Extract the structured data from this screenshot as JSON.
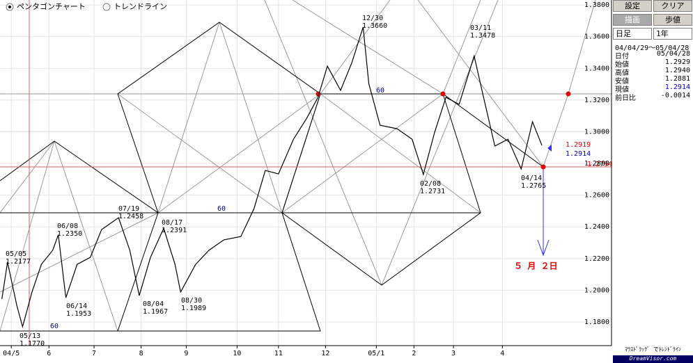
{
  "chart_data": {
    "type": "line",
    "x": [
      1,
      4,
      9,
      12,
      17,
      22,
      28,
      31,
      35,
      41,
      48,
      54,
      63,
      69,
      74,
      80,
      87,
      93,
      96,
      104,
      111,
      119,
      128,
      135,
      141,
      148,
      156,
      163,
      169,
      174,
      181,
      187,
      193,
      196,
      202,
      211,
      219,
      225,
      231,
      237,
      244,
      252,
      257,
      263,
      270,
      277,
      283,
      288
    ],
    "series": [
      {
        "color": "#000000",
        "values": [
          1.1945,
          1.2177,
          1.1901,
          1.177,
          1.1989,
          1.2164,
          1.2252,
          1.235,
          1.1953,
          1.2164,
          1.2208,
          1.2383,
          1.2458,
          1.2252,
          1.1967,
          1.2208,
          1.2391,
          1.2164,
          1.1989,
          1.2164,
          1.2252,
          1.2318,
          1.2339,
          1.2515,
          1.2756,
          1.2734,
          1.2953,
          1.3085,
          1.3217,
          1.3414,
          1.3261,
          1.3436,
          1.366,
          1.3304,
          1.3041,
          1.3019,
          1.2953,
          1.2731,
          1.2997,
          1.3217,
          1.3173,
          1.3478,
          1.3217,
          1.291,
          1.2953,
          1.2765,
          1.3063,
          1.2914
        ]
      }
    ],
    "xlim": [
      0,
      325
    ],
    "ylim": [
      1.1651,
      1.3831
    ],
    "grid": true,
    "xticks": [
      {
        "value": 6,
        "label": "04/5"
      },
      {
        "value": 26,
        "label": "6"
      },
      {
        "value": 50,
        "label": "7"
      },
      {
        "value": 75,
        "label": "8"
      },
      {
        "value": 99,
        "label": "9"
      },
      {
        "value": 126,
        "label": "10"
      },
      {
        "value": 148,
        "label": "11"
      },
      {
        "value": 173,
        "label": "12"
      },
      {
        "value": 200,
        "label": "05/1"
      },
      {
        "value": 220,
        "label": "2"
      },
      {
        "value": 241,
        "label": "3"
      },
      {
        "value": 267,
        "label": "4"
      }
    ],
    "yticks": [
      {
        "value": 1.18,
        "label": "1.1800"
      },
      {
        "value": 1.2,
        "label": "1.2000"
      },
      {
        "value": 1.22,
        "label": "1.2200"
      },
      {
        "value": 1.24,
        "label": "1.2400"
      },
      {
        "value": 1.26,
        "label": "1.2600"
      },
      {
        "value": 1.28,
        "label": "1.2800"
      },
      {
        "value": 1.3,
        "label": "1.3000"
      },
      {
        "value": 1.32,
        "label": "1.3200"
      },
      {
        "value": 1.34,
        "label": "1.3400"
      },
      {
        "value": 1.36,
        "label": "1.3600"
      },
      {
        "value": 1.38,
        "label": "1.3800"
      }
    ],
    "annotations": [
      {
        "date": "05/05",
        "price": "1.2177"
      },
      {
        "date": "05/13",
        "price": "1.1770"
      },
      {
        "date": "06/08",
        "price": "1.2350"
      },
      {
        "date": "06/14",
        "price": "1.1953"
      },
      {
        "date": "07/19",
        "price": "1.2458"
      },
      {
        "date": "08/17",
        "price": "1.2391"
      },
      {
        "date": "08/04",
        "price": "1.1967"
      },
      {
        "date": "08/30",
        "price": "1.1989"
      },
      {
        "date": "12/30",
        "price": "1.3660"
      },
      {
        "date": "02/08",
        "price": "1.2731"
      },
      {
        "date": "03/11",
        "price": "1.3478"
      },
      {
        "date": "04/14",
        "price": "1.2765"
      }
    ],
    "angle_labels": [
      "60",
      "60",
      "60"
    ],
    "levels": [
      "1.2919",
      "1.2914",
      "1.2794"
    ],
    "target_date": "５ 月 ２日"
  },
  "modes": [
    "ペンタゴンチャート",
    "トレンドライン"
  ],
  "panel": {
    "buttons": [
      "設定",
      "クリア",
      "描画",
      "歩値"
    ],
    "period": "日足",
    "span": "1年",
    "range": "04/04/29～05/04/28",
    "rows": [
      [
        "日付",
        "05/04/28"
      ],
      [
        "始値",
        "1.2929"
      ],
      [
        "高値",
        "1.2940"
      ],
      [
        "安値",
        "1.2881"
      ],
      [
        "現値",
        "1.2914"
      ],
      [
        "前日比",
        "-0.0014"
      ]
    ],
    "hint": "ﾏｳｽﾄﾞﾗｯｸﾞ でﾄﾚﾝﾄﾞﾗｲﾝ",
    "logo": "DreamVisor.com"
  }
}
